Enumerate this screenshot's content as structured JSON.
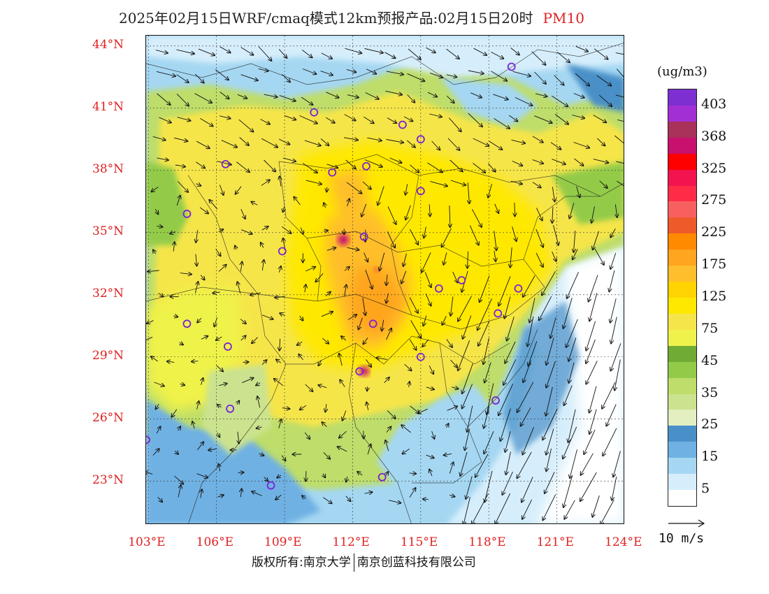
{
  "title": {
    "main": "2025年02月15日WRF/cmaq模式12km预报产品:02月15日20时",
    "variable": "PM10"
  },
  "axes": {
    "lat_labels": [
      "44°N",
      "41°N",
      "38°N",
      "35°N",
      "32°N",
      "29°N",
      "26°N",
      "23°N"
    ],
    "lon_labels": [
      "103°E",
      "106°E",
      "109°E",
      "112°E",
      "115°E",
      "118°E",
      "121°E",
      "124°E"
    ],
    "lat_values": [
      44,
      41,
      38,
      35,
      32,
      29,
      26,
      23
    ],
    "lon_values": [
      103,
      106,
      109,
      112,
      115,
      118,
      121,
      124
    ],
    "lat_range": [
      20.9,
      44.5
    ],
    "lon_range": [
      102.9,
      124
    ]
  },
  "colorbar": {
    "unit": "(ug/m3)",
    "levels": [
      "403",
      "368",
      "325",
      "275",
      "225",
      "175",
      "125",
      "75",
      "45",
      "35",
      "25",
      "15",
      "5"
    ],
    "colors": [
      "#7d2fd1",
      "#a12fd4",
      "#a8325a",
      "#c8106e",
      "#ff0000",
      "#f2134f",
      "#ff2b47",
      "#f86060",
      "#ee5a2a",
      "#ff8a00",
      "#ffa51f",
      "#ffbe2b",
      "#ffd400",
      "#ffe800",
      "#f6e54a",
      "#eff24a",
      "#6fab35",
      "#93cb48",
      "#bedd6a",
      "#cbe38e",
      "#e3efc0",
      "#4a90c8",
      "#6fb1e3",
      "#a5d7f2",
      "#d6eefb",
      "#ffffff"
    ]
  },
  "wind_reference": {
    "label": "10 m/s"
  },
  "copyright": {
    "left": "版权所有:南京大学",
    "right": "南京创蓝科技有限公司"
  },
  "stations": [
    {
      "lon": 119.0,
      "lat": 43.0
    },
    {
      "lon": 110.3,
      "lat": 40.8
    },
    {
      "lon": 114.2,
      "lat": 40.2
    },
    {
      "lon": 115.0,
      "lat": 39.5
    },
    {
      "lon": 106.4,
      "lat": 38.3
    },
    {
      "lon": 111.1,
      "lat": 37.9
    },
    {
      "lon": 112.6,
      "lat": 38.2
    },
    {
      "lon": 115.0,
      "lat": 37.0
    },
    {
      "lon": 104.7,
      "lat": 35.9
    },
    {
      "lon": 112.5,
      "lat": 34.8
    },
    {
      "lon": 108.9,
      "lat": 34.1
    },
    {
      "lon": 116.8,
      "lat": 32.7
    },
    {
      "lon": 115.8,
      "lat": 32.3
    },
    {
      "lon": 119.3,
      "lat": 32.3
    },
    {
      "lon": 118.4,
      "lat": 31.1
    },
    {
      "lon": 104.7,
      "lat": 30.6
    },
    {
      "lon": 112.9,
      "lat": 30.6
    },
    {
      "lon": 106.5,
      "lat": 29.5
    },
    {
      "lon": 115.0,
      "lat": 29.0
    },
    {
      "lon": 112.3,
      "lat": 28.3
    },
    {
      "lon": 106.6,
      "lat": 26.5
    },
    {
      "lon": 118.3,
      "lat": 26.9
    },
    {
      "lon": 102.9,
      "lat": 25.0
    },
    {
      "lon": 108.4,
      "lat": 22.8
    },
    {
      "lon": 113.3,
      "lat": 23.2
    }
  ]
}
